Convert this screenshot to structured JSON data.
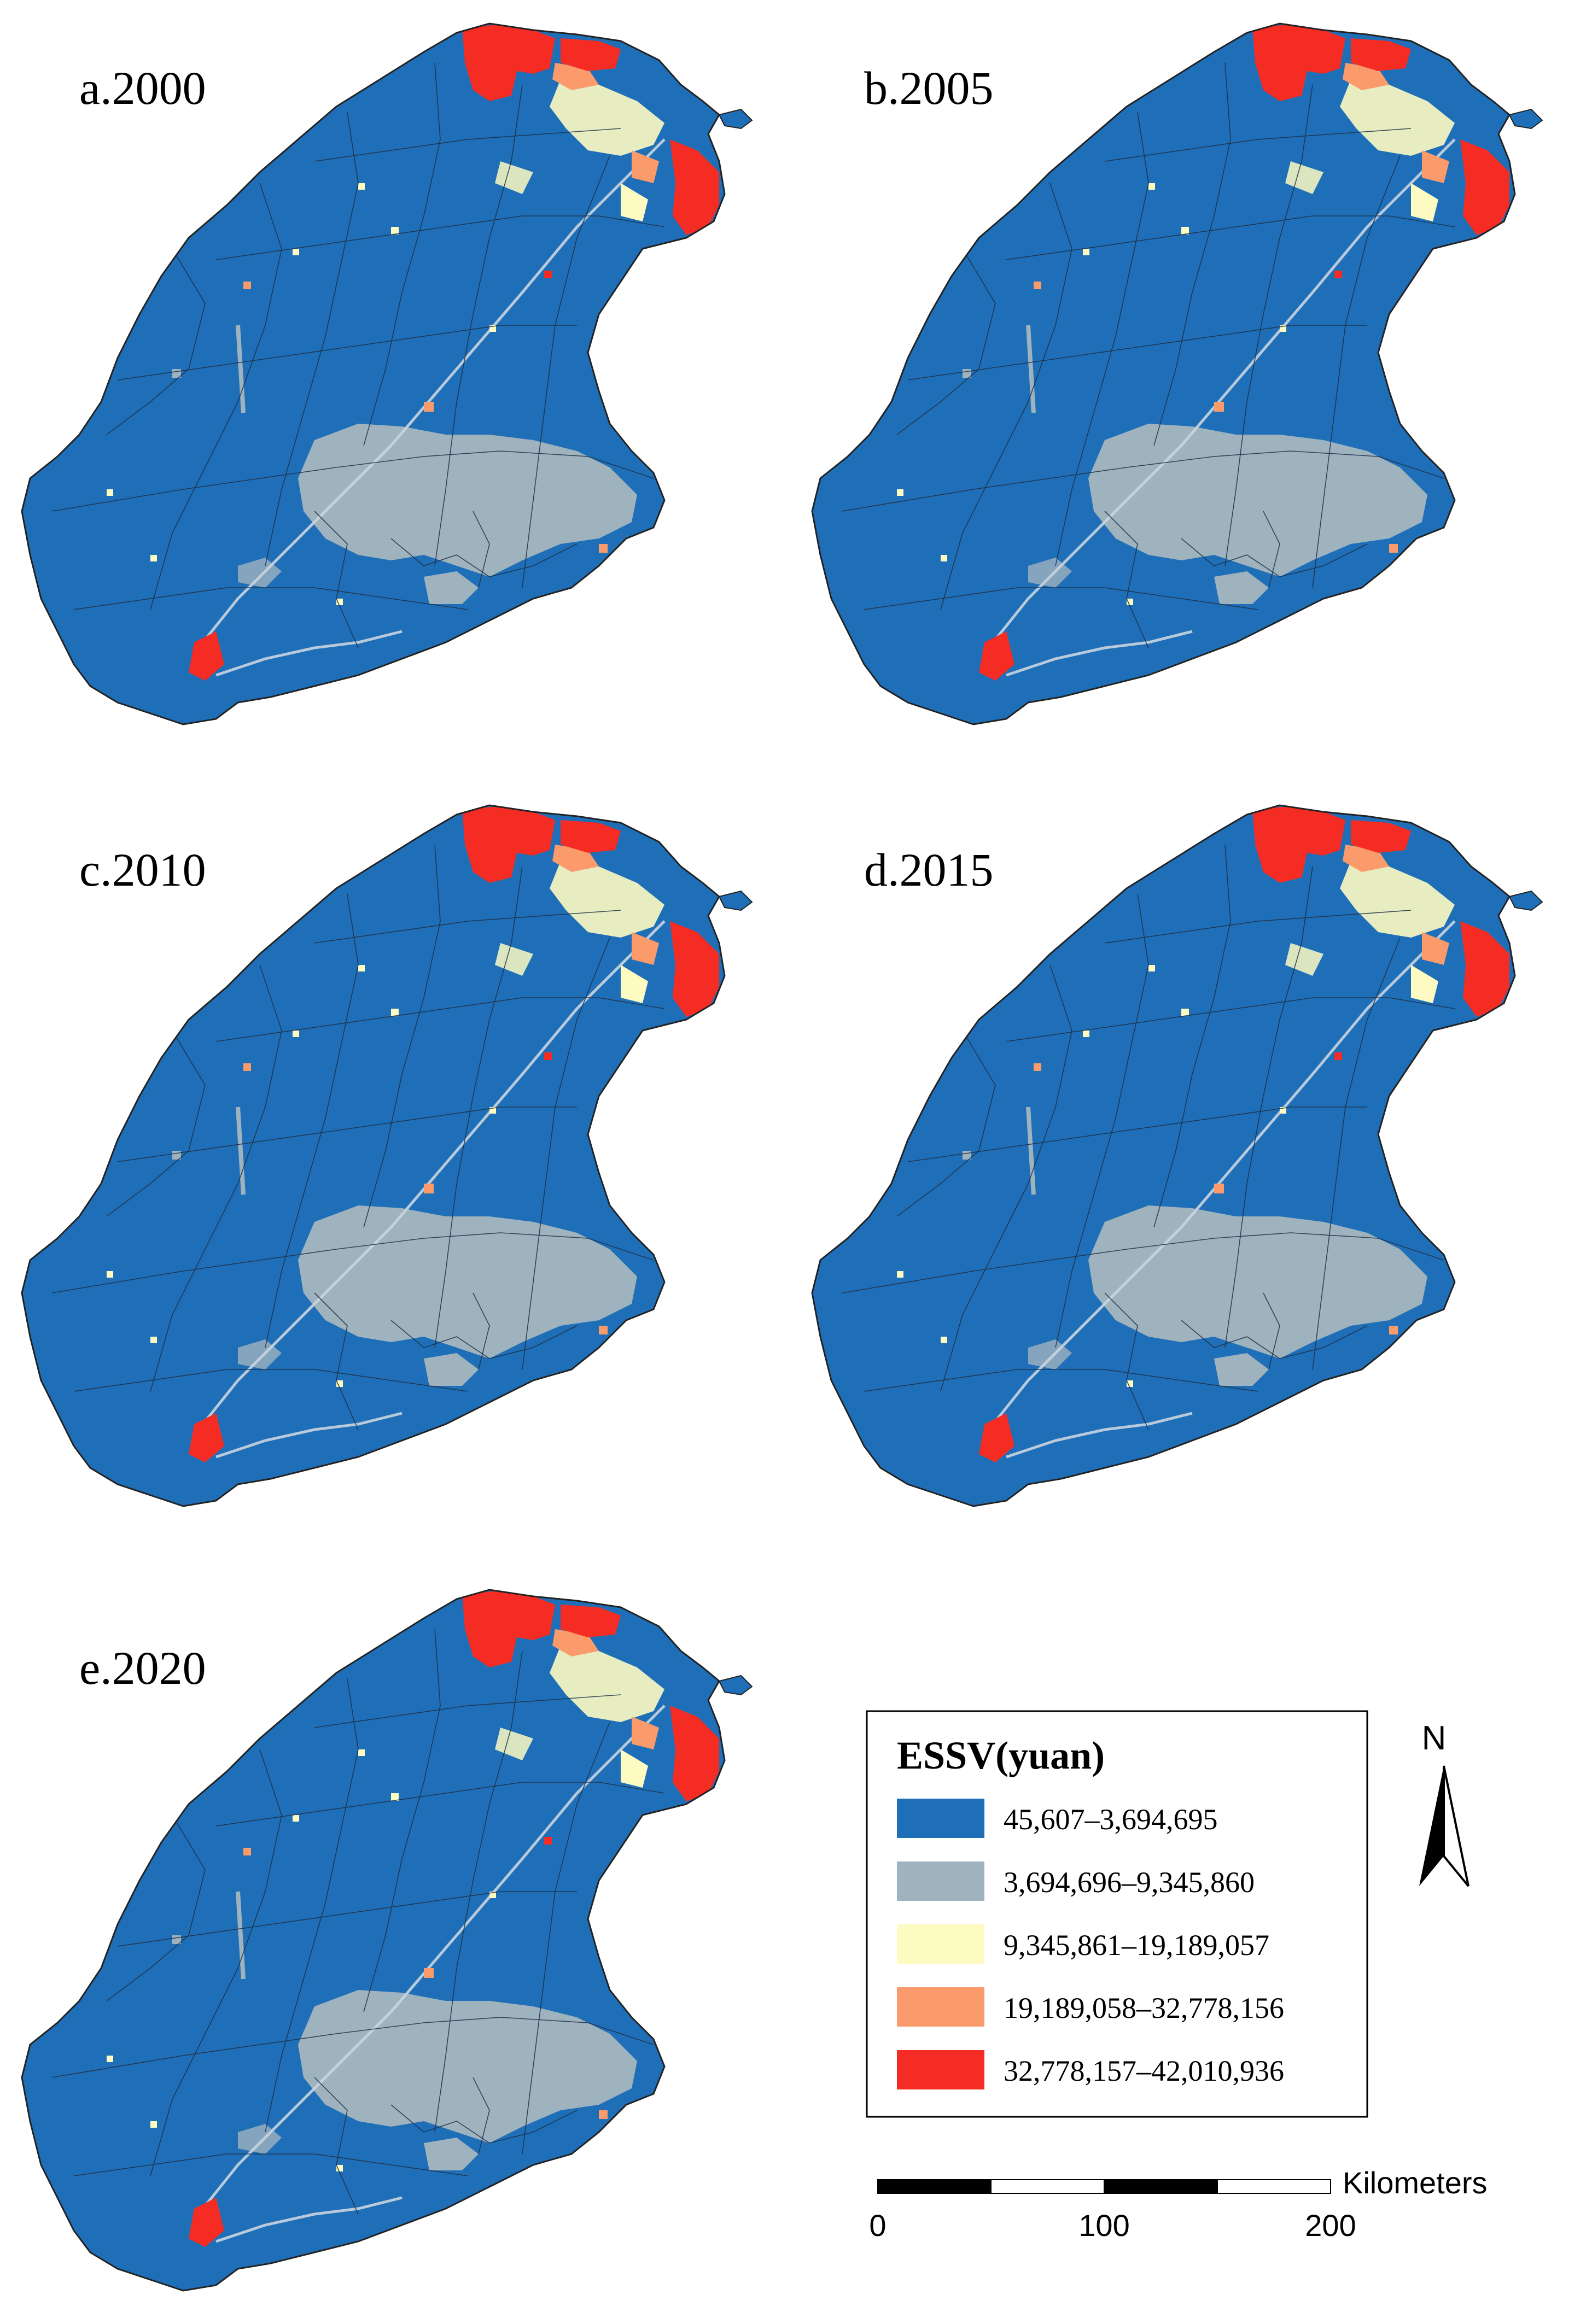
{
  "panels": [
    {
      "id": "a",
      "label": "a.2000",
      "year": 2000
    },
    {
      "id": "b",
      "label": "b.2005",
      "year": 2005
    },
    {
      "id": "c",
      "label": "c.2010",
      "year": 2010
    },
    {
      "id": "d",
      "label": "d.2015",
      "year": 2015
    },
    {
      "id": "e",
      "label": "e.2020",
      "year": 2020
    }
  ],
  "legend": {
    "title": "ESSV(yuan)",
    "classes": [
      {
        "label": "45,607–3,694,695",
        "color": "#1f6fb8"
      },
      {
        "label": "3,694,696–9,345,860",
        "color": "#9fb3bf"
      },
      {
        "label": "9,345,861–19,189,057",
        "color": "#fdfbc2"
      },
      {
        "label": "19,189,058–32,778,156",
        "color": "#fb9b6b"
      },
      {
        "label": "32,778,157–42,010,936",
        "color": "#f42c24"
      }
    ]
  },
  "north_arrow": {
    "label": "N",
    "icon": "north-arrow-icon"
  },
  "scale_bar": {
    "unit": "Kilometers",
    "ticks": [
      "0",
      "100",
      "200"
    ]
  }
}
